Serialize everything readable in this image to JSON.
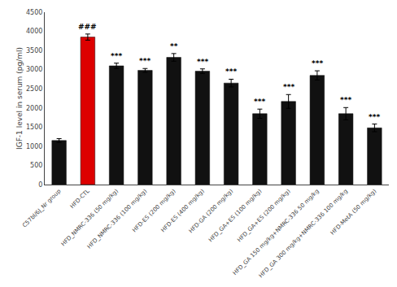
{
  "chart_data": {
    "type": "bar",
    "categories": [
      "C57bl/6J_Nr group",
      "HFD-CTL",
      "HFD_NMRC-336 (50 mg/kg)",
      "HFD_NMRC-336 (100 mg/kg)",
      "HFD-ES (200 mg/kg)",
      "HFD-ES (400 mg/kg)",
      "HFD-GA (200 mg/kg)",
      "HFD_GA+ES (100 mg/kg)",
      "HFD_GA+ES (200 mg/kg)",
      "HFD_GA 150 mg/kg+NMRC-336 50 mg/kg",
      "HFD_GA 300 mg/kg+NMRC-336 100 mg/kg",
      "HFD-MetA (50 mg/kg)"
    ],
    "values": [
      1150,
      3850,
      3100,
      2980,
      3320,
      2960,
      2650,
      1850,
      2170,
      2850,
      1850,
      1480
    ],
    "errors": [
      50,
      80,
      70,
      50,
      100,
      60,
      100,
      120,
      180,
      120,
      160,
      100
    ],
    "colors": [
      "#111111",
      "#dd0000",
      "#111111",
      "#111111",
      "#111111",
      "#111111",
      "#111111",
      "#111111",
      "#111111",
      "#111111",
      "#111111",
      "#111111"
    ],
    "annotations": [
      {
        "category": "HFD-CTL",
        "text": "###"
      },
      {
        "category": "HFD_NMRC-336 (50 mg/kg)",
        "text": "***"
      },
      {
        "category": "HFD_NMRC-336 (100 mg/kg)",
        "text": "***"
      },
      {
        "category": "HFD-ES (200 mg/kg)",
        "text": "**"
      },
      {
        "category": "HFD-ES (400 mg/kg)",
        "text": "***"
      },
      {
        "category": "HFD-GA (200 mg/kg)",
        "text": "***"
      },
      {
        "category": "HFD_GA+ES (100 mg/kg)",
        "text": "***"
      },
      {
        "category": "HFD_GA+ES (200 mg/kg)",
        "text": "***"
      },
      {
        "category": "HFD_GA 150 mg/kg+NMRC-336 50 mg/kg",
        "text": "***"
      },
      {
        "category": "HFD_GA 300 mg/kg+NMRC-336 100 mg/kg",
        "text": "***"
      },
      {
        "category": "HFD-MetA (50 mg/kg)",
        "text": "***"
      }
    ],
    "ylabel": "IGF-1 level in serum (pg/ml)",
    "ylim": [
      0,
      4500
    ],
    "yticks": [
      0,
      500,
      1000,
      1500,
      2000,
      2500,
      3000,
      3500,
      4000,
      4500
    ],
    "grid": false
  }
}
